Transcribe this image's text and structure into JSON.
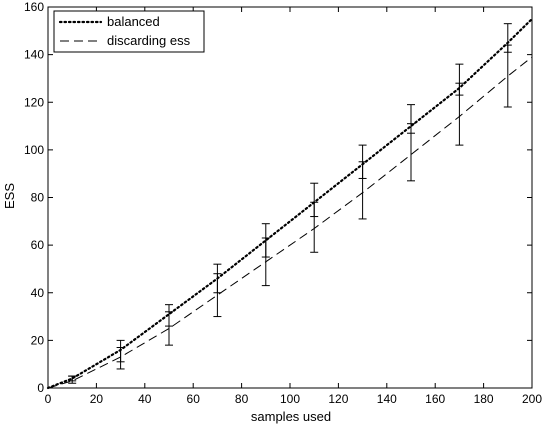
{
  "chart_data": {
    "type": "line",
    "xlabel": "samples used",
    "ylabel": "ESS",
    "xlim": [
      0,
      200
    ],
    "ylim": [
      0,
      160
    ],
    "xticks": [
      0,
      20,
      40,
      60,
      80,
      100,
      120,
      140,
      160,
      180,
      200
    ],
    "yticks": [
      0,
      20,
      40,
      60,
      80,
      100,
      120,
      140,
      160
    ],
    "grid": false,
    "legend_position": "top-left",
    "series": [
      {
        "name": "balanced",
        "style": "dotted",
        "x": [
          0,
          10,
          30,
          50,
          70,
          90,
          110,
          130,
          150,
          170,
          190,
          200
        ],
        "y": [
          0,
          4,
          16,
          31,
          46,
          62,
          78,
          94,
          110,
          126,
          145,
          155
        ],
        "errorbars": [
          {
            "x": 10,
            "low": 3,
            "high": 5
          },
          {
            "x": 30,
            "low": 11,
            "high": 20
          },
          {
            "x": 50,
            "low": 26,
            "high": 35
          },
          {
            "x": 70,
            "low": 40,
            "high": 52
          },
          {
            "x": 90,
            "low": 55,
            "high": 69
          },
          {
            "x": 110,
            "low": 72,
            "high": 86
          },
          {
            "x": 130,
            "low": 88,
            "high": 102
          },
          {
            "x": 150,
            "low": 107,
            "high": 119
          },
          {
            "x": 170,
            "low": 123,
            "high": 136
          },
          {
            "x": 190,
            "low": 141,
            "high": 153
          }
        ]
      },
      {
        "name": "discarding ess",
        "style": "dashed",
        "x": [
          0,
          10,
          30,
          50,
          70,
          90,
          110,
          130,
          150,
          170,
          190,
          200
        ],
        "y": [
          0,
          3,
          13,
          25,
          39,
          53,
          67,
          82,
          98,
          114,
          131,
          139
        ],
        "errorbars": [
          {
            "x": 10,
            "low": 2,
            "high": 5
          },
          {
            "x": 30,
            "low": 8,
            "high": 17
          },
          {
            "x": 50,
            "low": 18,
            "high": 32
          },
          {
            "x": 70,
            "low": 30,
            "high": 48
          },
          {
            "x": 90,
            "low": 43,
            "high": 63
          },
          {
            "x": 110,
            "low": 57,
            "high": 78
          },
          {
            "x": 130,
            "low": 71,
            "high": 95
          },
          {
            "x": 150,
            "low": 87,
            "high": 111
          },
          {
            "x": 170,
            "low": 102,
            "high": 128
          },
          {
            "x": 190,
            "low": 118,
            "high": 144
          }
        ]
      }
    ]
  }
}
